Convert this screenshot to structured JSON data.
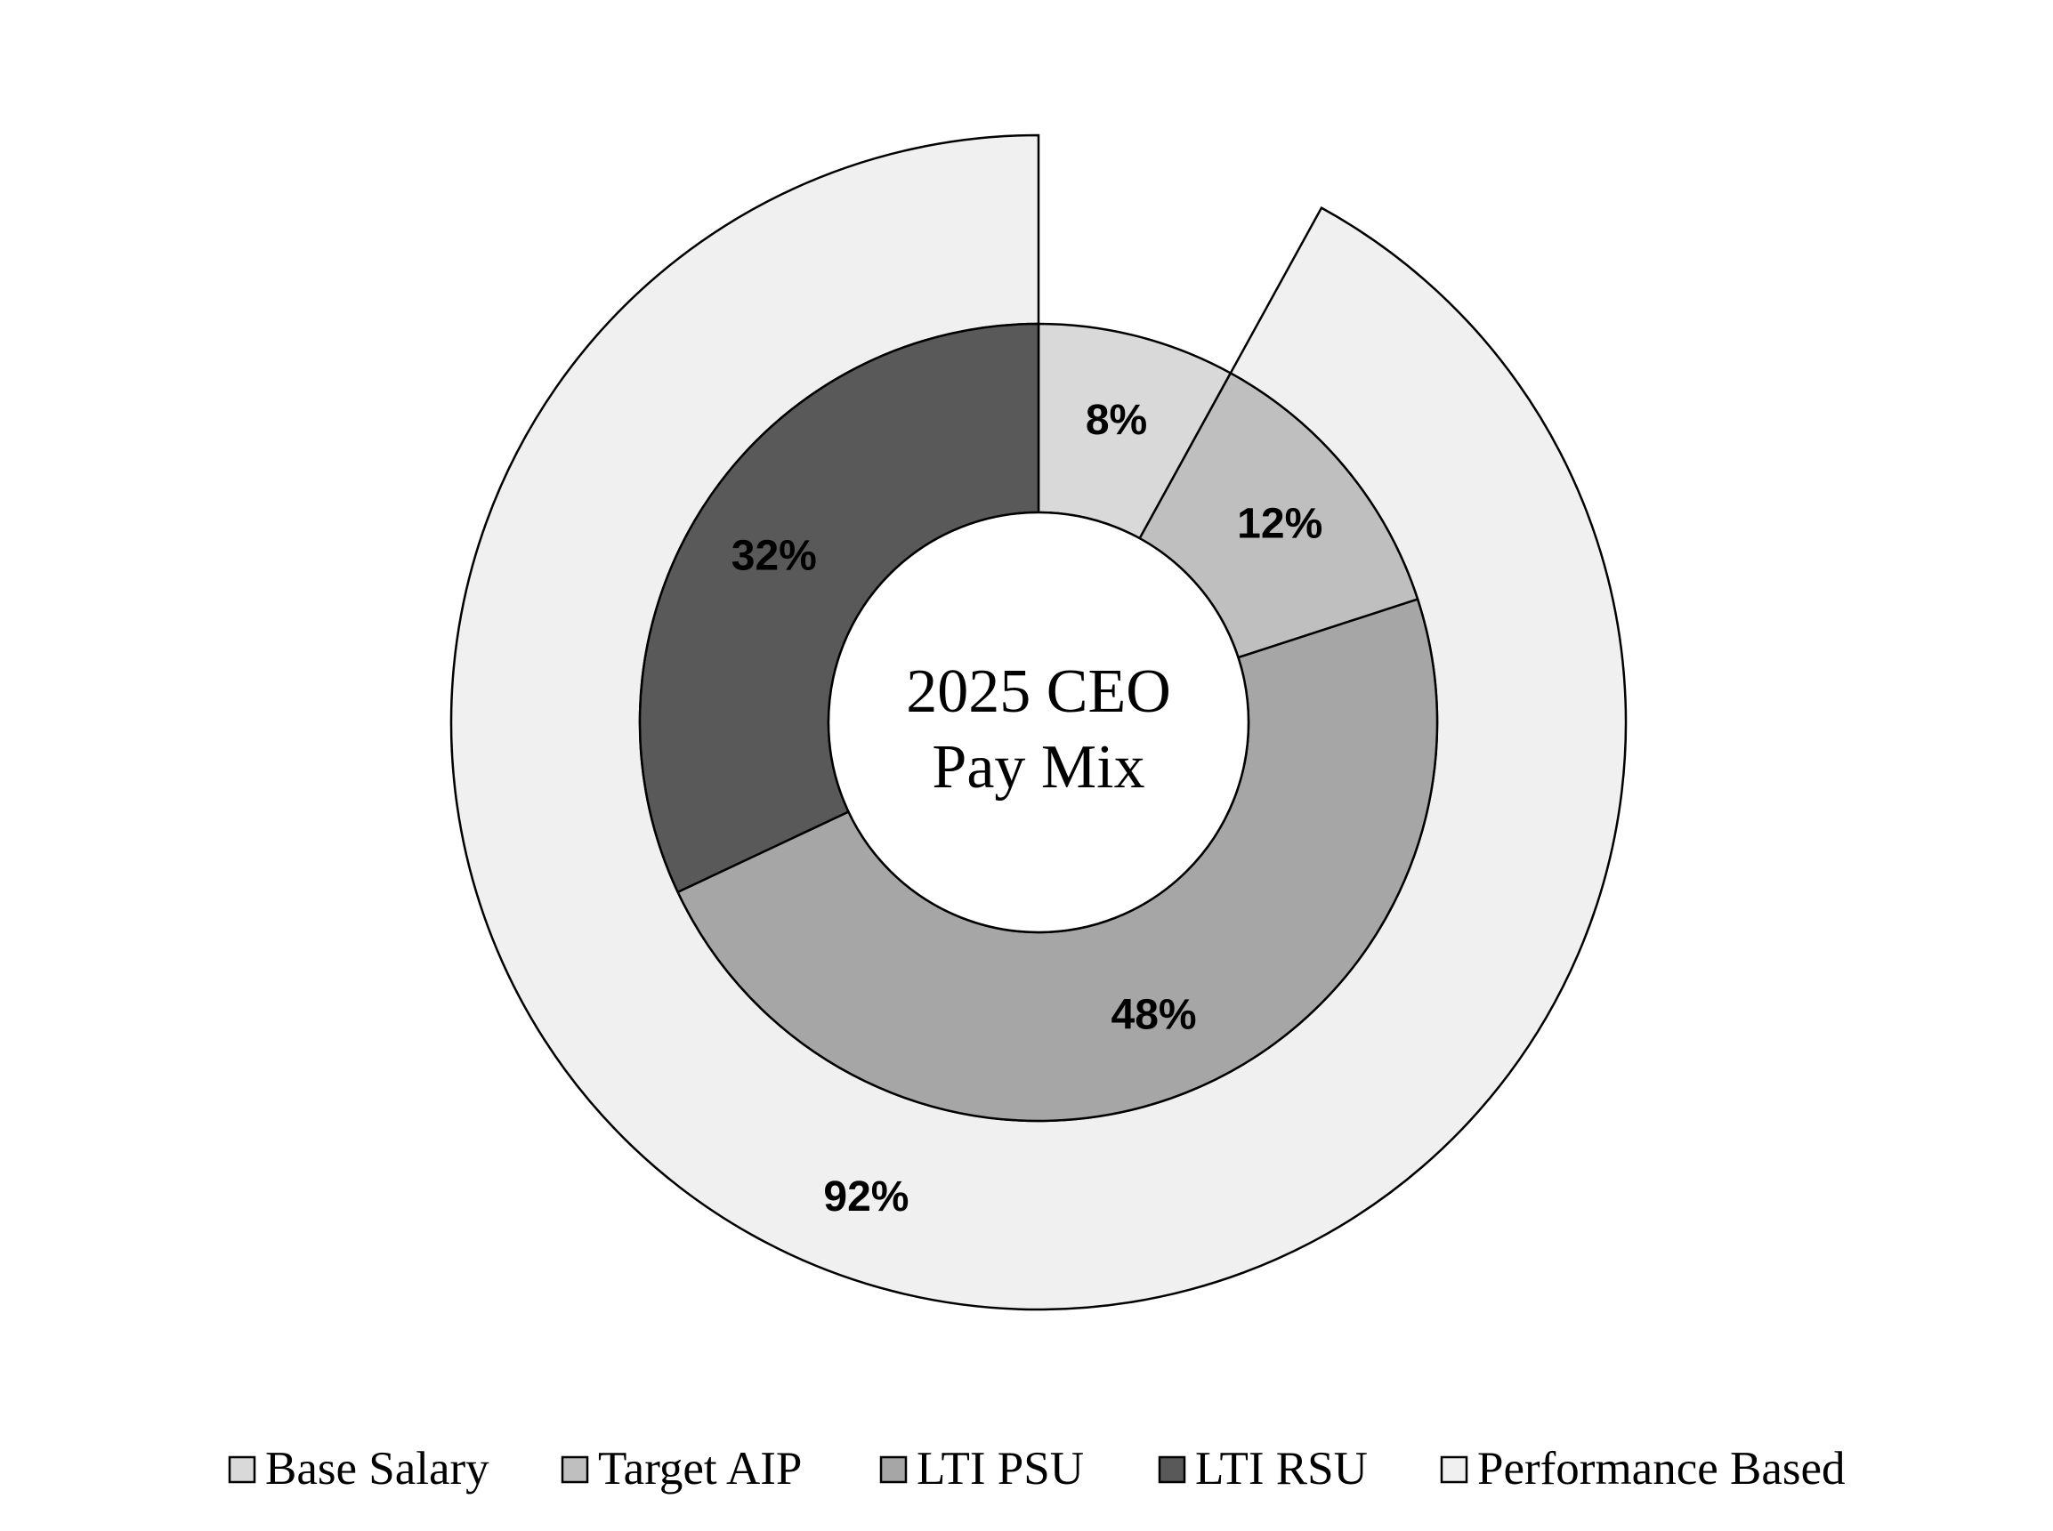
{
  "chart_data": {
    "type": "pie",
    "title": "2025 CEO Pay Mix",
    "center_title_lines": [
      "2025 CEO",
      "Pay Mix"
    ],
    "inner_ring": [
      {
        "name": "Base Salary",
        "value": 8,
        "label": "8%",
        "color": "#d9d9d9"
      },
      {
        "name": "Target AIP",
        "value": 12,
        "label": "12%",
        "color": "#bfbfbf"
      },
      {
        "name": "LTI PSU",
        "value": 48,
        "label": "48%",
        "color": "#a6a6a6"
      },
      {
        "name": "LTI RSU",
        "value": 32,
        "label": "32%",
        "color": "#595959"
      }
    ],
    "outer_ring": [
      {
        "name": "Performance Based",
        "value": 92,
        "label": "92%",
        "color": "#f0f0f0"
      }
    ],
    "legend": {
      "placement": "bottom",
      "entries": [
        {
          "name": "Base Salary",
          "color": "#d9d9d9"
        },
        {
          "name": "Target AIP",
          "color": "#bfbfbf"
        },
        {
          "name": "LTI PSU",
          "color": "#a6a6a6"
        },
        {
          "name": "LTI RSU",
          "color": "#595959"
        },
        {
          "name": "Performance Based",
          "color": "#f0f0f0"
        }
      ]
    }
  }
}
